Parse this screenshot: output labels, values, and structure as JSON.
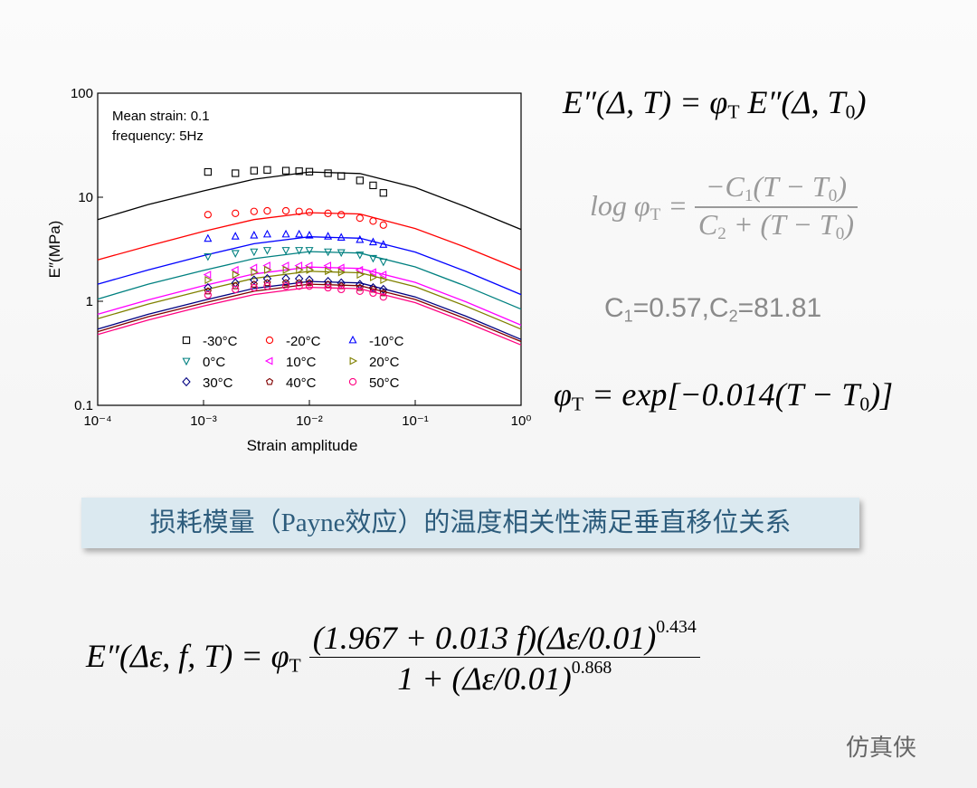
{
  "chart_data": {
    "type": "scatter",
    "ylabel": "E″(MPa)",
    "xlabel": "Strain amplitude",
    "annotations": [
      "Mean strain: 0.1",
      "frequency: 5Hz"
    ],
    "xscale": "log",
    "yscale": "log",
    "xlim": [
      0.0001,
      1
    ],
    "ylim": [
      0.1,
      100
    ],
    "xticks": [
      {
        "value": 0.0001,
        "label": "10⁻⁴"
      },
      {
        "value": 0.001,
        "label": "10⁻³"
      },
      {
        "value": 0.01,
        "label": "10⁻²"
      },
      {
        "value": 0.1,
        "label": "10⁻¹"
      },
      {
        "value": 1,
        "label": "10⁰"
      }
    ],
    "yticks": [
      0.1,
      1,
      10,
      100
    ],
    "x": [
      0.0011,
      0.002,
      0.003,
      0.004,
      0.006,
      0.008,
      0.01,
      0.015,
      0.02,
      0.03,
      0.04,
      0.05
    ],
    "fit_x": [
      0.0001,
      0.0003,
      0.001,
      0.003,
      0.01,
      0.03,
      0.1,
      0.3,
      1
    ],
    "series": [
      {
        "name": "-30°C",
        "color": "#000000",
        "marker": "square",
        "values": [
          17.5,
          17,
          18,
          18.3,
          18,
          17.8,
          17.6,
          17,
          16,
          14.5,
          13,
          11
        ],
        "fit_values": [
          6.1,
          8.5,
          11.5,
          14.9,
          17.5,
          16.9,
          12.4,
          8.1,
          4.9
        ]
      },
      {
        "name": "-20°C",
        "color": "#ff0000",
        "marker": "circle",
        "values": [
          6.8,
          7,
          7.3,
          7.4,
          7.4,
          7.3,
          7.2,
          7,
          6.8,
          6.3,
          5.9,
          5.4
        ],
        "fit_values": [
          2.5,
          3.4,
          4.7,
          6.1,
          7.1,
          6.9,
          5.0,
          3.3,
          2.0
        ]
      },
      {
        "name": "-10°C",
        "color": "#0000ff",
        "marker": "triangle-up",
        "values": [
          4.0,
          4.2,
          4.3,
          4.4,
          4.4,
          4.4,
          4.3,
          4.2,
          4.1,
          3.9,
          3.7,
          3.5
        ],
        "fit_values": [
          1.46,
          2.0,
          2.75,
          3.57,
          4.17,
          4.04,
          2.97,
          1.94,
          1.16
        ]
      },
      {
        "name": "0°C",
        "color": "#008080",
        "marker": "triangle-down",
        "values": [
          2.7,
          2.9,
          3.0,
          3.1,
          3.1,
          3.1,
          3.1,
          3.0,
          2.95,
          2.8,
          2.6,
          2.4
        ],
        "fit_values": [
          1.05,
          1.46,
          1.98,
          2.57,
          3.0,
          2.91,
          2.14,
          1.4,
          0.84
        ]
      },
      {
        "name": "10°C",
        "color": "#ff00ff",
        "marker": "triangle-left",
        "values": [
          1.8,
          2.0,
          2.1,
          2.2,
          2.2,
          2.2,
          2.2,
          2.2,
          2.1,
          2.0,
          1.9,
          1.8
        ],
        "fit_values": [
          0.75,
          1.03,
          1.41,
          1.83,
          2.13,
          2.07,
          1.52,
          0.99,
          0.59
        ]
      },
      {
        "name": "20°C",
        "color": "#808000",
        "marker": "triangle-right",
        "values": [
          1.6,
          1.8,
          1.9,
          2.0,
          2.0,
          2.0,
          2.0,
          1.95,
          1.9,
          1.8,
          1.7,
          1.6
        ],
        "fit_values": [
          0.68,
          0.94,
          1.28,
          1.66,
          1.94,
          1.88,
          1.38,
          0.9,
          0.54
        ]
      },
      {
        "name": "30°C",
        "color": "#000080",
        "marker": "diamond",
        "values": [
          1.35,
          1.5,
          1.6,
          1.65,
          1.65,
          1.65,
          1.6,
          1.55,
          1.5,
          1.45,
          1.35,
          1.3
        ],
        "fit_values": [
          0.54,
          0.75,
          1.02,
          1.33,
          1.55,
          1.5,
          1.1,
          0.72,
          0.43
        ]
      },
      {
        "name": "40°C",
        "color": "#800000",
        "marker": "pentagon",
        "values": [
          1.25,
          1.4,
          1.45,
          1.5,
          1.5,
          1.5,
          1.5,
          1.45,
          1.4,
          1.35,
          1.3,
          1.2
        ],
        "fit_values": [
          0.51,
          0.71,
          0.96,
          1.25,
          1.46,
          1.41,
          1.04,
          0.68,
          0.41
        ]
      },
      {
        "name": "50°C",
        "color": "#ff0080",
        "marker": "circle",
        "values": [
          1.15,
          1.3,
          1.35,
          1.4,
          1.4,
          1.4,
          1.4,
          1.35,
          1.3,
          1.25,
          1.2,
          1.1
        ],
        "fit_values": [
          0.48,
          0.66,
          0.9,
          1.16,
          1.36,
          1.32,
          0.97,
          0.63,
          0.38
        ]
      }
    ]
  },
  "equations": {
    "shift": [
      "E″(Δ, T) = φ",
      "T",
      " E″(Δ, T",
      "0",
      ")"
    ],
    "wlf_lhs": [
      "log φ",
      "T",
      " = "
    ],
    "wlf_num": [
      "−C",
      "1",
      "(T − T",
      "0",
      ")"
    ],
    "wlf_den": [
      "C",
      "2",
      " + (T − T",
      "0",
      ")"
    ],
    "constants": [
      "C",
      "1",
      "=0.57,C",
      "2",
      "=81.81"
    ],
    "phi": [
      "φ",
      "T",
      " = exp[−0.014(T − T",
      "0",
      ")]"
    ],
    "model_lhs": [
      "E″(Δε, f, T) = φ",
      "T",
      " "
    ],
    "model_num": [
      "(1.967 + 0.013 f)(Δε/0.01)",
      "0.434"
    ],
    "model_den": [
      "1 + (Δε/0.01)",
      "0.868"
    ]
  },
  "banner": "损耗模量（Payne效应）的温度相关性满足垂直移位关系",
  "watermark": "仿真侠"
}
